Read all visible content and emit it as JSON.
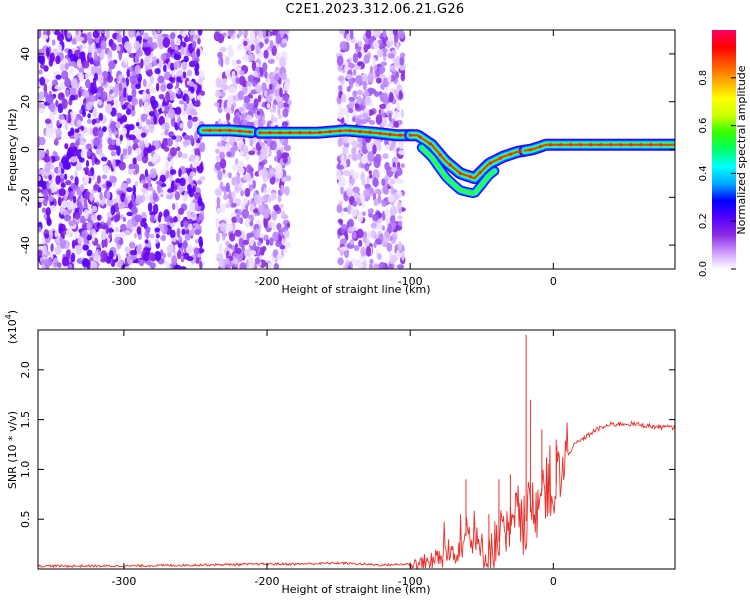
{
  "title": "C2E1.2023.312.06.21.G26",
  "chart_data": [
    {
      "type": "heatmap",
      "xlabel": "Height of straight line (km)",
      "ylabel": "Frequency (Hz)",
      "xlim": [
        -360,
        85
      ],
      "ylim": [
        -50,
        50
      ],
      "xticks": [
        -300,
        -200,
        -100,
        0
      ],
      "yticks": [
        -40,
        -20,
        0,
        20,
        40
      ],
      "colorbar": {
        "label": "Normalized spectral amplitude",
        "range": [
          0,
          1
        ],
        "ticks": [
          "0.0",
          "0.2",
          "0.4",
          "0.6",
          "0.8"
        ],
        "colors": [
          "#ffffff",
          "#cc99ff",
          "#8a2be2",
          "#5500ff",
          "#0000ff",
          "#00aaff",
          "#00ffff",
          "#00ff66",
          "#33ff00",
          "#ccff00",
          "#ffff00",
          "#ffaa00",
          "#ff5500",
          "#ff0000",
          "#ff0066"
        ]
      },
      "noise_regions": [
        [
          -360,
          -245
        ],
        [
          -235,
          -185
        ],
        [
          -150,
          -105
        ]
      ],
      "signal_track": [
        {
          "x": -245,
          "y": 8
        },
        {
          "x": -225,
          "y": 8
        },
        {
          "x": -205,
          "y": 7
        },
        {
          "x": -185,
          "y": 7
        },
        {
          "x": -165,
          "y": 7
        },
        {
          "x": -145,
          "y": 8
        },
        {
          "x": -125,
          "y": 7
        },
        {
          "x": -110,
          "y": 6
        },
        {
          "x": -95,
          "y": 6
        },
        {
          "x": -85,
          "y": 2
        },
        {
          "x": -75,
          "y": -5
        },
        {
          "x": -65,
          "y": -10
        },
        {
          "x": -55,
          "y": -12
        },
        {
          "x": -45,
          "y": -6
        },
        {
          "x": -35,
          "y": -3
        },
        {
          "x": -25,
          "y": -1
        },
        {
          "x": -15,
          "y": 0
        },
        {
          "x": -5,
          "y": 2
        },
        {
          "x": 10,
          "y": 2
        },
        {
          "x": 40,
          "y": 2
        },
        {
          "x": 85,
          "y": 2
        }
      ]
    },
    {
      "type": "line",
      "xlabel": "Height of straight line (km)",
      "ylabel": "SNR (10 * v/v)",
      "yscale_label": "(x10",
      "yscale_exp": "4",
      "xlim": [
        -360,
        85
      ],
      "ylim": [
        0,
        2.4
      ],
      "xticks": [
        -300,
        -200,
        -100,
        0
      ],
      "yticks": [
        0.5,
        1.0,
        1.5,
        2.0
      ],
      "yticklabels": [
        "0.5",
        "1.0",
        "1.5",
        "2.0"
      ],
      "series": [
        {
          "color": "#e8302a",
          "x": [
            -360,
            -300,
            -250,
            -200,
            -180,
            -150,
            -120,
            -100,
            -90,
            -80,
            -70,
            -60,
            -50,
            -40,
            -30,
            -25,
            -20,
            -15,
            -10,
            -5,
            0,
            5,
            10,
            15,
            20,
            30,
            40,
            50,
            60,
            70,
            85
          ],
          "y": [
            0.03,
            0.03,
            0.04,
            0.05,
            0.05,
            0.06,
            0.04,
            0.05,
            0.06,
            0.1,
            0.18,
            0.35,
            0.15,
            0.25,
            0.35,
            0.55,
            0.45,
            0.6,
            0.7,
            0.9,
            0.8,
            0.95,
            1.15,
            1.25,
            1.3,
            1.4,
            1.45,
            1.46,
            1.45,
            1.43,
            1.42
          ]
        }
      ],
      "spikes": [
        {
          "x": -61,
          "y": 0.9
        },
        {
          "x": -45,
          "y": 0.55
        },
        {
          "x": -38,
          "y": 0.9
        },
        {
          "x": -30,
          "y": 0.95
        },
        {
          "x": -19,
          "y": 2.35
        },
        {
          "x": -16,
          "y": 1.7
        },
        {
          "x": -8,
          "y": 1.4
        },
        {
          "x": 2,
          "y": 1.3
        }
      ]
    }
  ]
}
